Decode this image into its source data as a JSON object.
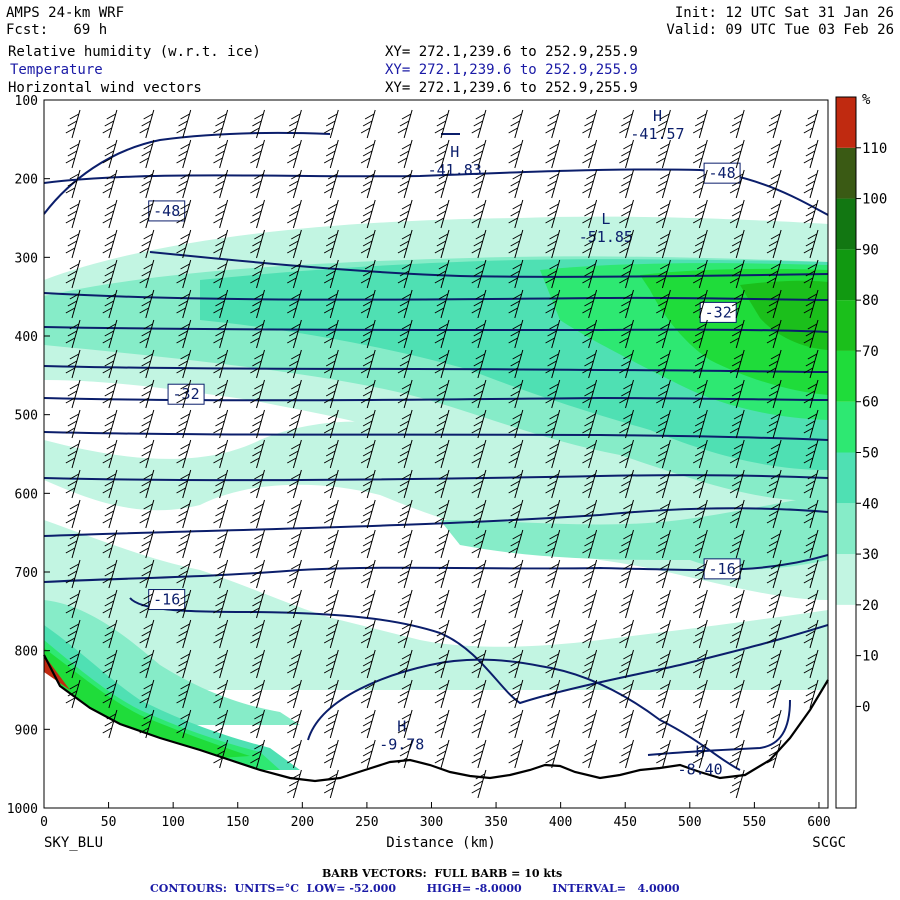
{
  "header": {
    "model": "AMPS 24-km WRF",
    "forecast": "Fcst:   69 h",
    "init": "Init: 12 UTC Sat 31 Jan 26",
    "valid": "Valid: 09 UTC Tue 03 Feb 26",
    "fields": [
      {
        "label": "Relative humidity (w.r.t. ice)",
        "xy": "XY= 272.1,239.6 to 252.9,255.9",
        "color": "#000000"
      },
      {
        "label": "Temperature",
        "xy": "XY= 272.1,239.6 to 252.9,255.9",
        "color": "#1a1aa6"
      },
      {
        "label": "Horizontal wind vectors",
        "xy": "XY= 272.1,239.6 to 252.9,255.9",
        "color": "#000000"
      }
    ]
  },
  "footer": {
    "barb_line": "BARB VECTORS:  FULL BARB = 10 kts",
    "contour_line": "CONTOURS:  UNITS=°C  LOW= -52.000        HIGH= -8.0000        INTERVAL=   4.0000"
  },
  "chart_data": {
    "type": "heatmap",
    "title": "",
    "xlabel": "Distance (km)",
    "ylabel": "",
    "xlim": [
      0,
      607
    ],
    "ylim": [
      1000,
      100
    ],
    "x_ticks": [
      0,
      50,
      100,
      150,
      200,
      250,
      300,
      350,
      400,
      450,
      500,
      550,
      600
    ],
    "y_ticks": [
      100,
      200,
      300,
      400,
      500,
      600,
      700,
      800,
      900,
      1000
    ],
    "left_endpoint": "SKY_BLU",
    "right_endpoint": "SCGC",
    "colorbar": {
      "unit": "%",
      "ticks": [
        0,
        10,
        20,
        30,
        40,
        50,
        60,
        70,
        80,
        90,
        100,
        110
      ],
      "colors": [
        "#ffffff",
        "#ffffff",
        "#ffffff",
        "#ffffff",
        "#c2f5e2",
        "#86ecc8",
        "#4fe0b3",
        "#2ee872",
        "#1fdc3a",
        "#1bbf1b",
        "#119911",
        "#127712",
        "#3a5a14",
        "#c02a10"
      ]
    },
    "temperature_contour_labels": [
      {
        "text": "-48",
        "x": 95,
        "p": 241
      },
      {
        "text": "-48",
        "x": 525,
        "p": 193
      },
      {
        "text": "-32",
        "x": 110,
        "p": 474
      },
      {
        "text": "-32",
        "x": 522,
        "p": 370
      },
      {
        "text": "-16",
        "x": 95,
        "p": 735
      },
      {
        "text": "-16",
        "x": 525,
        "p": 696
      }
    ],
    "extrema": [
      {
        "type": "H",
        "value": "-41.83",
        "x": 318,
        "p": 188
      },
      {
        "type": "H",
        "value": "-41.57",
        "x": 475,
        "p": 142
      },
      {
        "type": "L",
        "value": "-51.85",
        "x": 435,
        "p": 273
      },
      {
        "type": "H",
        "value": "-9.78",
        "x": 277,
        "p": 918
      },
      {
        "type": "H",
        "value": "-8.40",
        "x": 508,
        "p": 950
      }
    ],
    "temperature_isotherm_count": 13,
    "wind_barb_columns": 21
  }
}
